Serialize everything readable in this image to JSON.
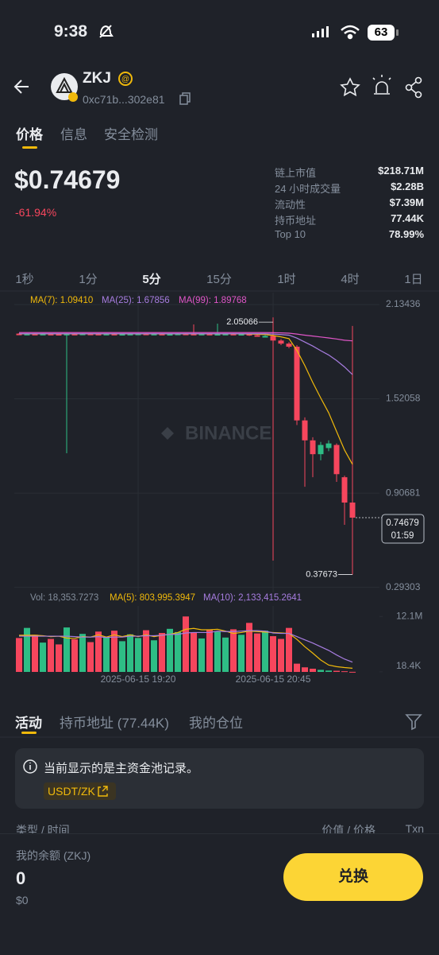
{
  "status_bar": {
    "time": "9:38",
    "battery": "63"
  },
  "header": {
    "symbol": "ZKJ",
    "address": "0xc71b...302e81"
  },
  "tabs": [
    "价格",
    "信息",
    "安全检测"
  ],
  "price": {
    "value": "$0.74679",
    "change": "-61.94%"
  },
  "stats": [
    {
      "label": "链上市值",
      "value": "$218.71M"
    },
    {
      "label": "24 小时成交量",
      "value": "$2.28B"
    },
    {
      "label": "流动性",
      "value": "$7.39M"
    },
    {
      "label": "持币地址",
      "value": "77.44K"
    },
    {
      "label": "Top 10",
      "value": "78.99%"
    }
  ],
  "intervals": [
    "1秒",
    "1分",
    "5分",
    "15分",
    "1时",
    "4时",
    "1日"
  ],
  "chart_data": {
    "type": "candlestick",
    "categories": [
      null,
      null,
      null,
      null,
      null,
      null,
      null,
      null,
      null,
      null,
      null,
      null,
      null,
      null,
      null,
      "2025-06-15 19:20",
      null,
      null,
      null,
      null,
      null,
      null,
      null,
      null,
      null,
      null,
      null,
      null,
      null,
      null,
      null,
      null,
      "2025-06-15 20:45",
      null,
      null,
      null,
      null,
      null,
      null,
      null,
      null,
      null,
      null
    ],
    "open": [
      1.945,
      1.943,
      1.944,
      1.942,
      1.944,
      1.943,
      1.942,
      1.944,
      1.943,
      1.945,
      1.944,
      1.943,
      1.944,
      1.942,
      1.943,
      1.944,
      1.945,
      1.943,
      1.944,
      1.942,
      1.943,
      1.945,
      1.944,
      1.943,
      1.944,
      1.942,
      1.943,
      1.944,
      1.942,
      1.943,
      1.935,
      1.93,
      1.93,
      1.9,
      1.88,
      1.86,
      1.38,
      1.25,
      1.16,
      1.2,
      1.22,
      1.01,
      0.845
    ],
    "high": [
      1.948,
      1.947,
      1.947,
      1.947,
      1.947,
      1.946,
      1.947,
      1.947,
      1.948,
      1.948,
      1.947,
      1.947,
      1.947,
      1.946,
      1.947,
      1.948,
      1.948,
      1.947,
      1.947,
      1.946,
      1.948,
      1.948,
      2.005,
      1.947,
      1.947,
      2.01,
      1.946,
      1.947,
      1.945,
      1.946,
      1.938,
      1.935,
      2.05066,
      1.91,
      1.89,
      1.87,
      1.4,
      1.27,
      1.24,
      1.25,
      1.23,
      1.02,
      1.995
    ],
    "low": [
      1.94,
      1.939,
      1.938,
      1.938,
      1.939,
      1.938,
      1.166,
      1.939,
      1.939,
      1.94,
      1.939,
      1.939,
      1.938,
      1.938,
      1.939,
      1.94,
      1.939,
      1.939,
      1.938,
      1.938,
      1.94,
      1.94,
      1.939,
      1.939,
      1.938,
      1.938,
      1.939,
      1.938,
      1.938,
      1.93,
      1.926,
      1.926,
      0.467,
      1.87,
      1.85,
      1.35,
      0.948,
      1.01,
      1.12,
      1.18,
      0.98,
      0.7,
      0.37673
    ],
    "close": [
      1.943,
      1.944,
      1.942,
      1.944,
      1.943,
      1.942,
      1.944,
      1.943,
      1.945,
      1.944,
      1.943,
      1.944,
      1.942,
      1.943,
      1.944,
      1.945,
      1.943,
      1.944,
      1.942,
      1.943,
      1.945,
      1.944,
      1.943,
      1.944,
      1.942,
      1.943,
      1.944,
      1.942,
      1.943,
      1.935,
      1.93,
      1.93,
      1.9,
      1.88,
      1.86,
      1.38,
      1.25,
      1.16,
      1.22,
      1.23,
      1.03,
      0.845,
      0.74679
    ],
    "up_color": "#2ebd85",
    "down_color": "#f6465d",
    "ylim": [
      0.26,
      2.212
    ],
    "yticks": [
      2.13436,
      1.52058,
      0.90681,
      0.29303
    ],
    "grid": true,
    "series": [
      {
        "name": "MA(7): 1.09410",
        "color": "#f0b90b",
        "values": [
          1.943,
          1.943,
          1.943,
          1.943,
          1.943,
          1.943,
          1.943,
          1.943,
          1.943,
          1.943,
          1.943,
          1.943,
          1.943,
          1.943,
          1.943,
          1.943,
          1.943,
          1.943,
          1.943,
          1.943,
          1.943,
          1.943,
          1.943,
          1.943,
          1.943,
          1.943,
          1.943,
          1.943,
          1.943,
          1.942,
          1.941,
          1.939,
          1.933,
          1.924,
          1.912,
          1.836,
          1.737,
          1.627,
          1.526,
          1.43,
          1.308,
          1.187,
          1.0941
        ]
      },
      {
        "name": "MA(25): 1.67856",
        "color": "#a77de0",
        "values": [
          1.944,
          1.944,
          1.944,
          1.944,
          1.944,
          1.944,
          1.944,
          1.944,
          1.944,
          1.944,
          1.944,
          1.944,
          1.944,
          1.944,
          1.944,
          1.944,
          1.944,
          1.944,
          1.944,
          1.944,
          1.944,
          1.944,
          1.944,
          1.944,
          1.944,
          1.944,
          1.944,
          1.944,
          1.944,
          1.944,
          1.944,
          1.944,
          1.942,
          1.939,
          1.935,
          1.916,
          1.89,
          1.864,
          1.834,
          1.806,
          1.77,
          1.728,
          1.67856
        ]
      },
      {
        "name": "MA(99): 1.89768",
        "color": "#e056c8",
        "values": [
          1.952,
          1.952,
          1.952,
          1.952,
          1.952,
          1.952,
          1.952,
          1.952,
          1.952,
          1.952,
          1.952,
          1.952,
          1.952,
          1.952,
          1.952,
          1.952,
          1.952,
          1.952,
          1.952,
          1.952,
          1.952,
          1.952,
          1.952,
          1.952,
          1.952,
          1.952,
          1.952,
          1.952,
          1.952,
          1.952,
          1.952,
          1.952,
          1.951,
          1.95,
          1.948,
          1.942,
          1.935,
          1.929,
          1.923,
          1.917,
          1.91,
          1.902,
          1.89768
        ]
      }
    ],
    "watermark": "BINANCE",
    "countdown": "01:59",
    "volume": {
      "name": "Vol: 18,353.7273",
      "values": [
        7400000,
        9600000,
        8100000,
        6400000,
        7200000,
        6000000,
        9700000,
        7100000,
        8300000,
        6500000,
        8800000,
        7600000,
        9000000,
        6700000,
        8200000,
        7400000,
        9100000,
        6900000,
        8500000,
        9400000,
        8700000,
        12100000,
        8600000,
        7300000,
        9200000,
        8800000,
        7500000,
        9300000,
        8100000,
        10700000,
        8400000,
        9000000,
        7800000,
        7200000,
        9600000,
        1800000,
        1000000,
        700000,
        450000,
        300000,
        250000,
        150000,
        18353.7273
      ]
    },
    "volume_series": [
      {
        "name": "MA(5): 803,995.3947",
        "color": "#f0b90b",
        "values": [
          8000000,
          8000000,
          8000000,
          7900000,
          7700000,
          7800000,
          7400000,
          7300000,
          7700000,
          7600000,
          8100000,
          7600000,
          8100000,
          7700000,
          8100000,
          7700000,
          8100000,
          7700000,
          8000000,
          8200000,
          8600000,
          9300000,
          9500000,
          9200000,
          9200000,
          9300000,
          8900000,
          8400000,
          8600000,
          8900000,
          8800000,
          8700000,
          8600000,
          8500000,
          8400000,
          7100000,
          5500000,
          4100000,
          2600000,
          1500000,
          1150000,
          950000,
          803995.3947
        ]
      },
      {
        "name": "MA(10): 2,133,415.2641",
        "color": "#a77de0",
        "values": [
          7800000,
          7800000,
          7800000,
          7800000,
          7800000,
          7800000,
          7800000,
          7700000,
          7600000,
          7600000,
          7700000,
          7500000,
          7600000,
          7600000,
          7800000,
          7800000,
          7900000,
          7900000,
          8000000,
          8200000,
          8200000,
          8500000,
          8600000,
          8600000,
          8600000,
          8900000,
          8800000,
          8800000,
          8900000,
          9000000,
          9000000,
          8900000,
          8500000,
          8400000,
          8400000,
          7700000,
          7000000,
          6300000,
          5500000,
          4700000,
          3700000,
          2800000,
          2133415.2641
        ]
      }
    ],
    "y2lim": [
      0,
      14400000
    ],
    "y2ticks": [
      {
        "value": 12100000,
        "label": "12.1M"
      },
      {
        "value": 18400,
        "label": "18.4K"
      }
    ]
  },
  "activity_tabs": [
    "活动",
    "持币地址 (77.44K)",
    "我的仓位"
  ],
  "notice": {
    "text": "当前显示的是主资金池记录。",
    "pair": "USDT/ZK"
  },
  "table_header": [
    "类型 / 时间",
    "价值 / 价格",
    "Txn"
  ],
  "footer": {
    "balance_label": "我的余额 (ZKJ)",
    "balance": "0",
    "balance_usd": "$0",
    "button": "兑换"
  }
}
